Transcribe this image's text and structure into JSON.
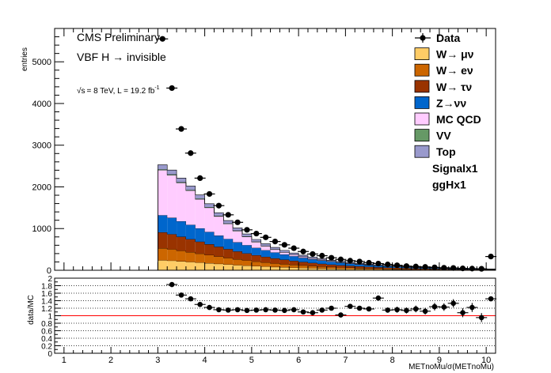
{
  "chart_data": [
    {
      "type": "stacked-bar",
      "panel": "main",
      "ylabel": "entries",
      "xlim": [
        0.8,
        10.2
      ],
      "ylim": [
        0,
        5800
      ],
      "yticks": [
        0,
        1000,
        2000,
        3000,
        4000,
        5000
      ],
      "annotations": {
        "experiment": "CMS Preliminary",
        "analysis": "VBF H → invisible",
        "lumi_prefix": "√s",
        "lumi_text": "= 8 TeV, L = 19.2 fb",
        "lumi_sup": "-1"
      },
      "bin_edges": [
        3.0,
        3.2,
        3.4,
        3.6,
        3.8,
        4.0,
        4.2,
        4.4,
        4.6,
        4.8,
        5.0,
        5.2,
        5.4,
        5.6,
        5.8,
        6.0,
        6.2,
        6.4,
        6.6,
        6.8,
        7.0,
        7.2,
        7.4,
        7.6,
        7.8,
        8.0,
        8.2,
        8.4,
        8.6,
        8.8,
        9.0,
        9.2,
        9.4,
        9.6,
        9.8,
        10.0,
        10.2
      ],
      "series": [
        {
          "name": "W→μν",
          "legend_label": "W→ μν",
          "color": "#ffcc66",
          "values": [
            240,
            230,
            215,
            200,
            185,
            170,
            155,
            140,
            125,
            112,
            100,
            90,
            80,
            72,
            64,
            57,
            50,
            44,
            39,
            35,
            31,
            28,
            25,
            22,
            20,
            18,
            16,
            14,
            12,
            11,
            10,
            9,
            8,
            7,
            6,
            6
          ]
        },
        {
          "name": "W→ eν",
          "legend_label": "W→  eν",
          "color": "#cc6600",
          "values": [
            290,
            275,
            255,
            235,
            215,
            195,
            175,
            158,
            140,
            125,
            110,
            98,
            87,
            77,
            68,
            60,
            53,
            47,
            41,
            36,
            32,
            28,
            25,
            22,
            19,
            17,
            15,
            13,
            12,
            10,
            9,
            8,
            7,
            6,
            6,
            5
          ]
        },
        {
          "name": "W→τν",
          "legend_label": "W→ τν",
          "color": "#993300",
          "values": [
            380,
            360,
            335,
            310,
            285,
            260,
            235,
            210,
            188,
            168,
            150,
            134,
            119,
            106,
            94,
            83,
            73,
            64,
            56,
            49,
            43,
            38,
            33,
            29,
            26,
            23,
            20,
            18,
            16,
            14,
            12,
            11,
            10,
            9,
            8,
            7
          ]
        },
        {
          "name": "Z→νν",
          "legend_label": "Z→νν",
          "color": "#0066cc",
          "values": [
            410,
            395,
            370,
            345,
            320,
            295,
            268,
            243,
            219,
            197,
            177,
            158,
            141,
            125,
            111,
            98,
            87,
            77,
            68,
            60,
            53,
            47,
            41,
            36,
            32,
            28,
            25,
            22,
            19,
            17,
            15,
            13,
            12,
            10,
            9,
            8
          ]
        },
        {
          "name": "MC QCD",
          "legend_label": "MC QCD",
          "color": "#ffccff",
          "values": [
            1080,
            1020,
            920,
            820,
            700,
            580,
            460,
            360,
            270,
            200,
            140,
            100,
            70,
            50,
            35,
            25,
            18,
            13,
            10,
            7,
            5,
            4,
            3,
            3,
            2,
            2,
            2,
            1,
            1,
            1,
            1,
            1,
            1,
            1,
            1,
            1
          ]
        },
        {
          "name": "VV",
          "legend_label": "VV",
          "color": "#669966",
          "values": [
            20,
            19,
            18,
            17,
            16,
            15,
            14,
            13,
            12,
            11,
            10,
            9,
            8,
            7,
            6,
            6,
            5,
            5,
            4,
            4,
            3,
            3,
            3,
            3,
            2,
            2,
            2,
            2,
            2,
            2,
            1,
            1,
            1,
            1,
            1,
            1
          ]
        },
        {
          "name": "Top",
          "legend_label": "Top",
          "color": "#9999cc",
          "values": [
            110,
            104,
            98,
            92,
            86,
            80,
            74,
            68,
            62,
            57,
            52,
            47,
            43,
            39,
            35,
            32,
            29,
            26,
            23,
            21,
            19,
            17,
            15,
            13,
            12,
            11,
            10,
            9,
            8,
            7,
            6,
            6,
            5,
            5,
            4,
            4
          ]
        }
      ],
      "data_points": {
        "name": "Data",
        "legend_label": "Data",
        "x": [
          3.1,
          3.3,
          3.5,
          3.7,
          3.9,
          4.1,
          4.3,
          4.5,
          4.7,
          4.9,
          5.1,
          5.3,
          5.5,
          5.7,
          5.9,
          6.1,
          6.3,
          6.5,
          6.7,
          6.9,
          7.1,
          7.3,
          7.5,
          7.7,
          7.9,
          8.1,
          8.3,
          8.5,
          8.7,
          8.9,
          9.1,
          9.3,
          9.5,
          9.7,
          9.9,
          10.1
        ],
        "y": [
          5550,
          4370,
          3390,
          2810,
          2210,
          1830,
          1550,
          1330,
          1150,
          970,
          880,
          790,
          690,
          610,
          530,
          450,
          390,
          350,
          300,
          260,
          230,
          210,
          180,
          160,
          140,
          120,
          100,
          90,
          80,
          70,
          60,
          55,
          45,
          40,
          35,
          330
        ]
      },
      "legend_extra": [
        "Signalx1",
        "ggHx1"
      ],
      "legend_position": "top-right"
    },
    {
      "type": "scatter",
      "panel": "ratio",
      "ylabel": "data/MC",
      "xlabel": "METnoMu/σ(METnoMu)",
      "xlim": [
        0.8,
        10.2
      ],
      "ylim": [
        0,
        2
      ],
      "xticks": [
        1,
        2,
        3,
        4,
        5,
        6,
        7,
        8,
        9,
        10
      ],
      "yticks": [
        0,
        0.2,
        0.4,
        0.6,
        0.8,
        1,
        1.2,
        1.4,
        1.6,
        1.8,
        2
      ],
      "reference_line": 1,
      "x": [
        3.3,
        3.5,
        3.7,
        3.9,
        4.1,
        4.3,
        4.5,
        4.7,
        4.9,
        5.1,
        5.3,
        5.5,
        5.7,
        5.9,
        6.1,
        6.3,
        6.5,
        6.7,
        6.9,
        7.1,
        7.3,
        7.5,
        7.7,
        7.9,
        8.1,
        8.3,
        8.5,
        8.7,
        8.9,
        9.1,
        9.3,
        9.5,
        9.7,
        9.9,
        10.1
      ],
      "y": [
        1.83,
        1.55,
        1.45,
        1.3,
        1.22,
        1.16,
        1.15,
        1.16,
        1.14,
        1.15,
        1.16,
        1.15,
        1.14,
        1.16,
        1.1,
        1.08,
        1.15,
        1.2,
        1.02,
        1.25,
        1.2,
        1.18,
        1.47,
        1.15,
        1.16,
        1.14,
        1.18,
        1.12,
        1.24,
        1.23,
        1.33,
        1.08,
        1.22,
        0.95,
        1.45
      ],
      "yerr": [
        0.05,
        0.05,
        0.05,
        0.05,
        0.05,
        0.05,
        0.05,
        0.05,
        0.05,
        0.05,
        0.05,
        0.05,
        0.05,
        0.05,
        0.05,
        0.05,
        0.05,
        0.06,
        0.06,
        0.06,
        0.06,
        0.06,
        0.07,
        0.07,
        0.08,
        0.08,
        0.09,
        0.09,
        0.1,
        0.1,
        0.11,
        0.12,
        0.12,
        0.12,
        0.05
      ]
    }
  ]
}
